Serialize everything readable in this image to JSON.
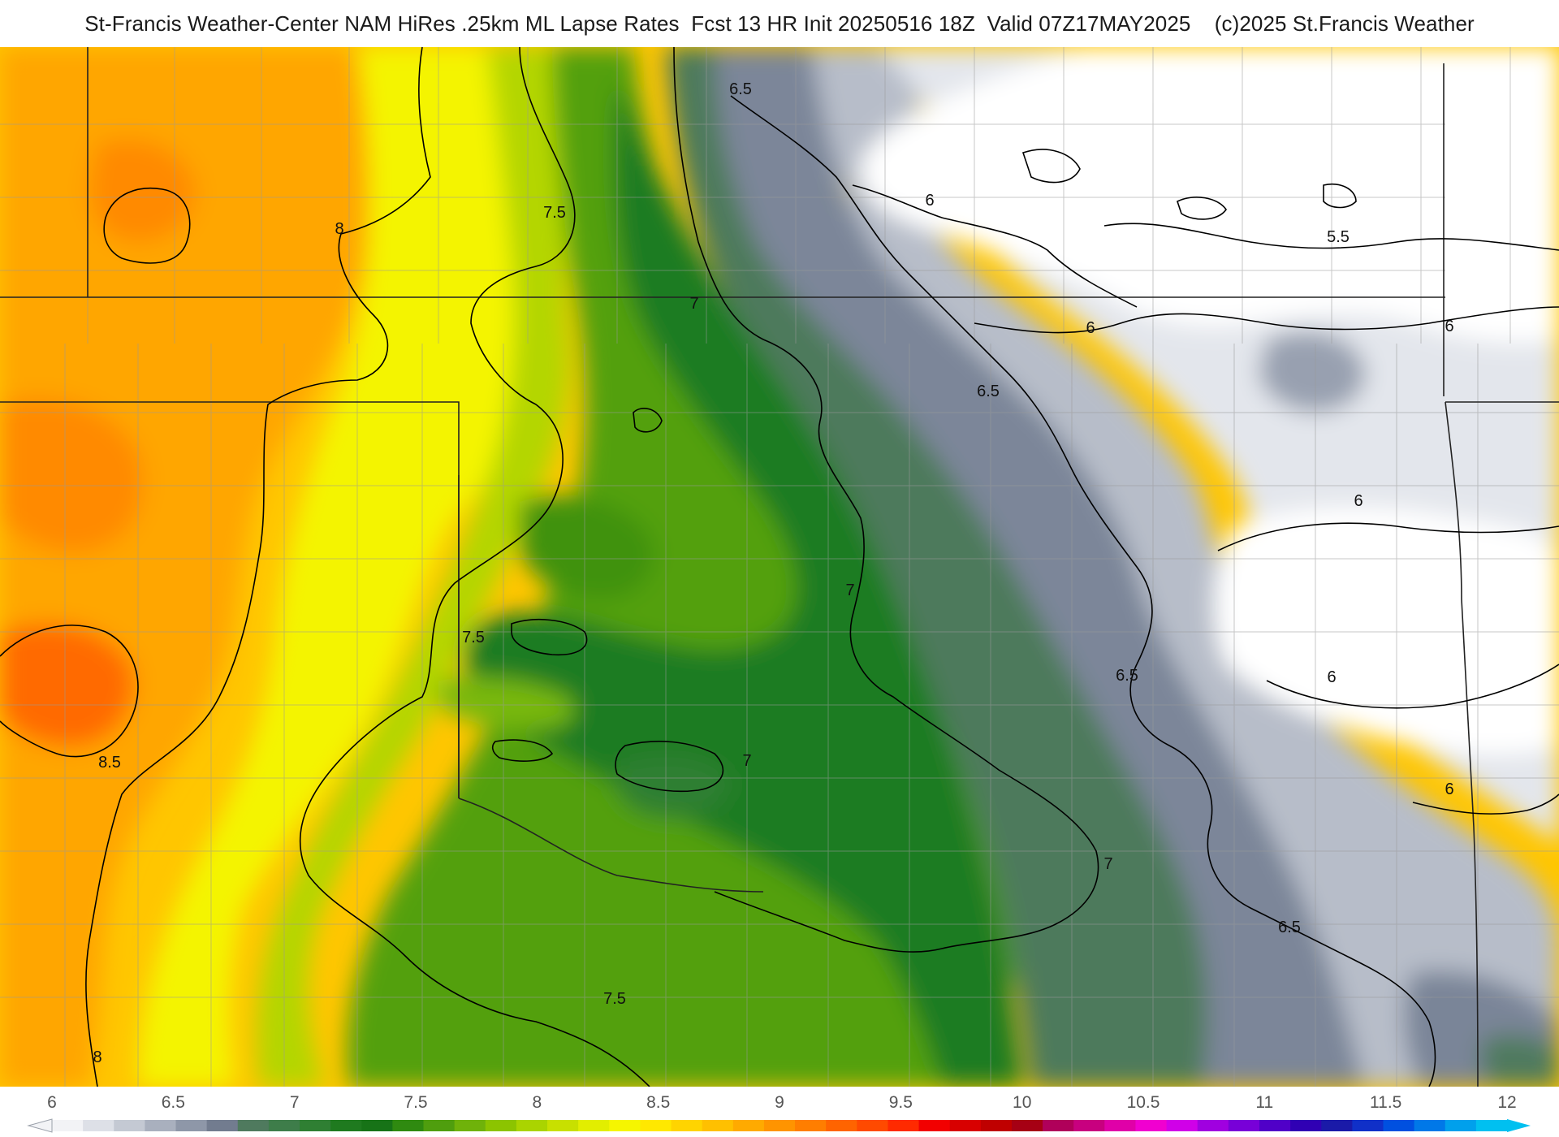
{
  "title": "St-Francis Weather-Center NAM HiRes .25km ML Lapse Rates  Fcst 13 HR Init 20250516 18Z  Valid 07Z17MAY2025    (c)2025 St.Francis Weather",
  "colors": {
    "white": "#ffffff",
    "light_gray": "#e6e8ee",
    "gray": "#b9bfcb",
    "slate": "#7a8598",
    "teal_green": "#3d7d4d",
    "dark_green": "#1f7a1f",
    "green": "#4f9e0e",
    "lime": "#8cc400",
    "yellow_green": "#c8e000",
    "yellow": "#f6f600",
    "gold": "#ffd400",
    "orange": "#ffa600",
    "deep_orange": "#ff8a00",
    "red_orange": "#ff5a00",
    "contour": "#000000",
    "boundary": "#222222",
    "county": "#9a9a9a"
  },
  "contour_labels": [
    "6.5",
    "6",
    "5.5",
    "6",
    "6",
    "7.5",
    "8",
    "7",
    "6.5",
    "7",
    "6",
    "7.5",
    "6.5",
    "6",
    "8.5",
    "7",
    "6",
    "7",
    "6.5",
    "7.5",
    "8"
  ],
  "colorbar": {
    "tick_labels": [
      "6",
      "6.5",
      "7",
      "7.5",
      "8",
      "8.5",
      "9",
      "9.5",
      "10",
      "10.5",
      "11",
      "11.5",
      "12"
    ],
    "colors": [
      "#f2f3f6",
      "#dde0e7",
      "#c4c9d3",
      "#a9b0be",
      "#8e97a8",
      "#727c8f",
      "#4f7a5e",
      "#3e7d4a",
      "#2f7f33",
      "#1f7a1f",
      "#177317",
      "#2f8a10",
      "#4f9e0e",
      "#6fb20a",
      "#8cc400",
      "#aad400",
      "#c8e000",
      "#e2ee00",
      "#f6f600",
      "#ffe800",
      "#ffd400",
      "#ffc000",
      "#ffaa00",
      "#ff9400",
      "#ff7e00",
      "#ff6400",
      "#ff4a00",
      "#ff2a00",
      "#f20000",
      "#d80000",
      "#bf0000",
      "#a60014",
      "#b0005a",
      "#c8007f",
      "#e000a8",
      "#f000d0",
      "#d000e8",
      "#a000e0",
      "#7800d8",
      "#5000c8",
      "#3000b4",
      "#1a1aa8",
      "#1030c8",
      "#0050e0",
      "#0078e8",
      "#00a0ec",
      "#00c0f0"
    ]
  }
}
